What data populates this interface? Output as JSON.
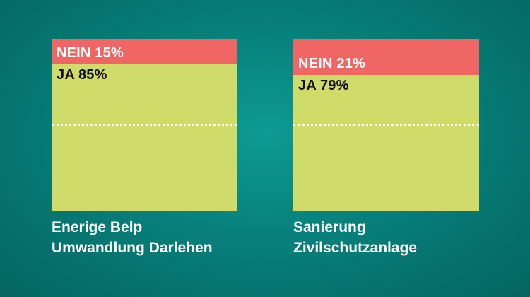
{
  "chart_data": [
    {
      "type": "bar",
      "stacked": true,
      "categories": [
        "NEIN",
        "JA"
      ],
      "values": [
        15,
        85
      ],
      "unit": "%",
      "labels": {
        "nein": "NEIN 15%",
        "ja": "JA 85%"
      },
      "caption": [
        "Enerige Belp",
        "Umwandlung Darlehen"
      ],
      "reference_line": 50
    },
    {
      "type": "bar",
      "stacked": true,
      "categories": [
        "NEIN",
        "JA"
      ],
      "values": [
        21,
        79
      ],
      "unit": "%",
      "labels": {
        "nein": "NEIN 21%",
        "ja": "JA 79%"
      },
      "caption": [
        "Sanierung",
        "Zivilschutzanlage"
      ],
      "reference_line": 50
    }
  ],
  "colors": {
    "nein": "#f06664",
    "ja": "#d0dc6a",
    "background": "#07807b"
  }
}
